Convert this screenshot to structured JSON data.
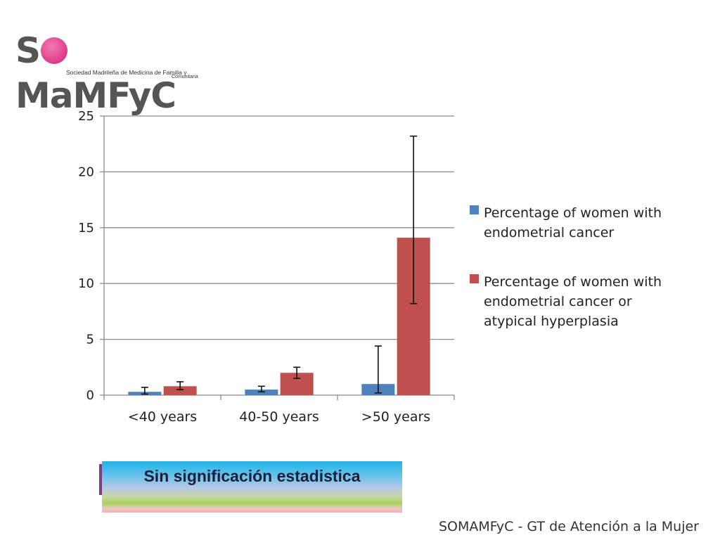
{
  "logo": {
    "text_s": "S",
    "text_rest": "MaMFyC",
    "subtitle": "Sociedad Madrileña de Medicina de Familia y",
    "subtitle2": "Comunitaria"
  },
  "chart_data": {
    "type": "bar",
    "categories": [
      "<40 years",
      "40-50 years",
      ">50 years"
    ],
    "series": [
      {
        "name": "Percentage of women with endometrial cancer",
        "color": "#4f81bd",
        "values": [
          0.3,
          0.5,
          1.0
        ],
        "error_low": [
          0.1,
          0.3,
          0.2
        ],
        "error_high": [
          0.7,
          0.8,
          4.4
        ]
      },
      {
        "name": "Percentage of women with endometrial cancer or atypical hyperplasia",
        "color": "#c0504d",
        "values": [
          0.8,
          2.0,
          14.1
        ],
        "error_low": [
          0.5,
          1.5,
          8.2
        ],
        "error_high": [
          1.2,
          2.5,
          23.2
        ]
      }
    ],
    "ylim": [
      0,
      25
    ],
    "yticks": [
      0,
      5,
      10,
      15,
      20,
      25
    ],
    "grid": true,
    "legend_position": "right"
  },
  "legend": [
    {
      "lines": [
        "Percentage of women with",
        "endometrial cancer"
      ]
    },
    {
      "lines": [
        "Percentage of women with",
        "endometrial cancer or",
        "atypical hyperplasia"
      ]
    }
  ],
  "banner": {
    "text": "Sin significación estadistica"
  },
  "footer": {
    "text": "SOMAMFyC - GT de Atención a la Mujer"
  }
}
